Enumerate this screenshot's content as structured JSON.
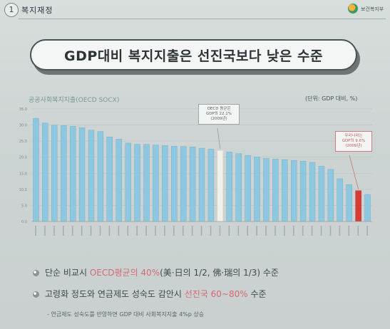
{
  "header": {
    "section_number": "1",
    "section_title": "복지재정",
    "logo_text": "보건복지부"
  },
  "title": "GDP대비 복지지출은 선진국보다 낮은 수준",
  "colors": {
    "bar": "#8ec8e0",
    "bar_edge": "#6aa9c7",
    "oecd_bar": "#f3f0ea",
    "korea_bar": "#d93a36",
    "emphasis": "#d46a74"
  },
  "chart_data": {
    "type": "bar",
    "title": "공공사회복지지출(OECD SOCX)",
    "unit_label": "(단위: GDP 대비, %)",
    "ylim": [
      0,
      35
    ],
    "yticks": [
      0,
      5,
      10,
      15,
      20,
      25,
      30,
      35
    ],
    "ytick_labels": [
      "0.0",
      "5.0",
      "10.0",
      "15.0",
      "20.0",
      "25.0",
      "30.0",
      "35.0"
    ],
    "values": [
      32.1,
      30.6,
      30.0,
      29.8,
      29.6,
      29.2,
      28.4,
      28.0,
      26.3,
      25.6,
      24.4,
      24.0,
      24.0,
      23.8,
      23.6,
      23.4,
      23.3,
      23.2,
      22.8,
      22.5,
      22.1,
      21.6,
      21.1,
      20.5,
      20.1,
      19.6,
      19.4,
      19.2,
      19.0,
      18.8,
      18.4,
      17.2,
      16.2,
      13.3,
      11.5,
      9.6,
      8.4
    ],
    "highlight": {
      "oecd_index": 20,
      "korea_index": 35
    },
    "annotations": [
      {
        "target": "oecd",
        "lines": [
          "OECD 평균은",
          "GDP의 22.1%",
          "(2009년)"
        ]
      },
      {
        "target": "korea",
        "lines": [
          "우리나라는",
          "GDP의 9.6%",
          "(2009년)"
        ]
      }
    ]
  },
  "bullets": [
    {
      "prefix": "단순 비교시 ",
      "emphasis": "OECD평균의 40%",
      "suffix": "(美·日의 1/2, 佛·瑞의 1/3) 수준"
    },
    {
      "prefix": "고령화 정도와 연금제도 성숙도 감안시 ",
      "emphasis": "선진국 60~80%",
      "suffix": " 수준"
    }
  ],
  "footnote": "- 연금제도 성숙도를 반영하면 GDP 대비 사회복지지출 4%p 상승"
}
